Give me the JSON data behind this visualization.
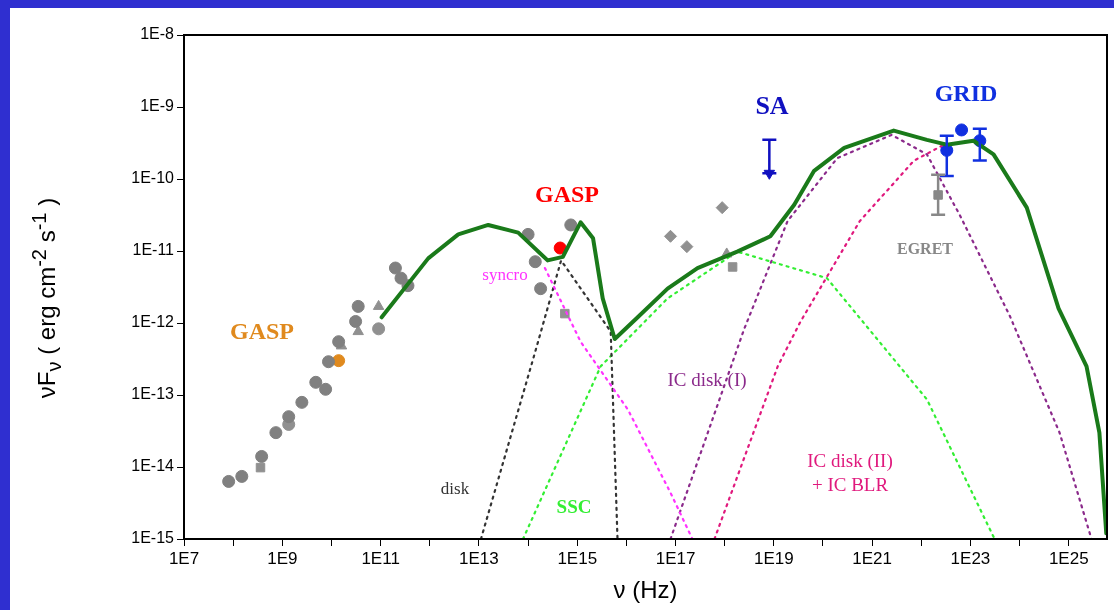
{
  "chart_data": {
    "type": "line",
    "xlabel": "ν (Hz)",
    "ylabel": "νF$_{ν}$ ( erg cm$^{-2}$ s$^{-1}$ )",
    "log": "xy",
    "xlim": [
      10000000.0,
      6e+25
    ],
    "ylim": [
      1e-15,
      1e-08
    ],
    "xticks": [
      {
        "value": 10000000.0,
        "label": "1E7"
      },
      {
        "value": 100000000.0,
        "label": null
      },
      {
        "value": 1000000000.0,
        "label": "1E9"
      },
      {
        "value": 10000000000.0,
        "label": null
      },
      {
        "value": 100000000000.0,
        "label": "1E11"
      },
      {
        "value": 1000000000000.0,
        "label": null
      },
      {
        "value": 10000000000000.0,
        "label": "1E13"
      },
      {
        "value": 100000000000000.0,
        "label": null
      },
      {
        "value": 1000000000000000.0,
        "label": "1E15"
      },
      {
        "value": 1e+16,
        "label": null
      },
      {
        "value": 1e+17,
        "label": "1E17"
      },
      {
        "value": 1e+18,
        "label": null
      },
      {
        "value": 1e+19,
        "label": "1E19"
      },
      {
        "value": 1e+20,
        "label": null
      },
      {
        "value": 1e+21,
        "label": "1E21"
      },
      {
        "value": 1e+22,
        "label": null
      },
      {
        "value": 1e+23,
        "label": "1E23"
      },
      {
        "value": 1e+24,
        "label": null
      },
      {
        "value": 1e+25,
        "label": "1E25"
      }
    ],
    "yticks": [
      {
        "value": 1e-15,
        "label": "1E-15"
      },
      {
        "value": 1e-14,
        "label": "1E-14"
      },
      {
        "value": 1e-13,
        "label": "1E-13"
      },
      {
        "value": 1e-12,
        "label": "1E-12"
      },
      {
        "value": 1e-11,
        "label": "1E-11"
      },
      {
        "value": 1e-10,
        "label": "1E-10"
      },
      {
        "value": 1e-09,
        "label": "1E-9"
      },
      {
        "value": 1e-08,
        "label": "1E-8"
      }
    ],
    "grid": false,
    "legend": false,
    "series": [
      {
        "color": "#1a7a1a",
        "line_style": "solid",
        "marker": "none",
        "x": [
          105000000000.0,
          930000000000.0,
          3800000000000.0,
          15500000000000.0,
          63000000000000.0,
          250000000000000.0,
          510000000000000.0,
          1170000000000000.0,
          2100000000000000.0,
          3300000000000000.0,
          5800000000000000.0,
          1.7e+16,
          6.9e+16,
          2.8e+17,
          1.8e+18,
          8.5e+18,
          2.6e+19,
          6.6e+19,
          2.7e+20,
          2.75e+21,
          1.3e+22,
          3.3e+22,
          1.15e+23,
          2.95e+23,
          1.4e+24,
          6.2e+24,
          2.3e+25,
          4.2e+25,
          5.8e+25
        ],
        "values": [
          1.2e-12,
          7.9e-12,
          1.7e-11,
          2.3e-11,
          1.8e-11,
          7.4e-12,
          8.3e-12,
          2.5e-11,
          1.5e-11,
          2.2e-12,
          6e-13,
          1.2e-12,
          3e-12,
          5.8e-12,
          9.8e-12,
          1.6e-11,
          4.4e-11,
          1.3e-10,
          2.7e-10,
          4.7e-10,
          3.5e-10,
          3e-10,
          3.4e-10,
          2.2e-10,
          4e-11,
          1.6e-12,
          2.5e-13,
          3e-14,
          1.2e-15
        ]
      },
      {
        "type": "line",
        "name": "syncro",
        "color": "#ff33ff",
        "line_style": "dotted",
        "marker": "none",
        "x": [
          220000000000000.0,
          1170000000000000.0,
          1.07e+16,
          7.9e+16,
          2.2e+17
        ],
        "values": [
          5.8e-12,
          5.5e-13,
          6.3e-14,
          4.4e-15,
          1e-15
        ]
      },
      {
        "type": "line",
        "name": "disk",
        "color": "#333333",
        "line_style": "dotted",
        "marker": "none",
        "x": [
          11000000000000.0,
          140000000000000.0,
          470000000000000.0,
          4800000000000000.0,
          6600000000000000.0
        ],
        "values": [
          1e-15,
          4e-13,
          7.4e-12,
          7.6e-13,
          1e-15
        ]
      },
      {
        "type": "line",
        "name": "SSC",
        "color": "#33ee33",
        "line_style": "dotted",
        "marker": "none",
        "x": [
          79000000000000.0,
          3000000000000000.0,
          6.9e+16,
          1.8e+18,
          1.2e+20,
          1.3e+22,
          3.1e+23
        ],
        "values": [
          1e-15,
          2.5e-13,
          2.2e-12,
          9.8e-12,
          4.2e-12,
          8.7e-14,
          1e-15
        ]
      },
      {
        "type": "line",
        "name": "IC disk (I)",
        "color": "#8b2a8b",
        "line_style": "dotted",
        "marker": "none",
        "x": [
          7.9e+16,
          2.5e+18,
          1.9e+19,
          1.95e+20,
          2.5e+21,
          1.3e+22,
          6e+22,
          6.3e+23,
          6.5e+24,
          2.9e+25
        ],
        "values": [
          1e-15,
          8.3e-13,
          2.6e-11,
          1.95e-10,
          4.1e-10,
          2.2e-10,
          3.2e-11,
          1.26e-12,
          3e-14,
          1e-15
        ]
      },
      {
        "type": "line",
        "name": "IC disk (II)\n+ IC BLR",
        "color": "#e0197d",
        "line_style": "dotted",
        "marker": "none",
        "x": [
          6.2e+17,
          1.2e+19,
          3.5e+19,
          5.6e+20,
          7.1e+21,
          2.9e+22
        ],
        "values": [
          1e-15,
          2.5e-13,
          1.05e-12,
          2.6e-11,
          1.8e-10,
          3e-10
        ]
      },
      {
        "type": "scatter",
        "color": "#808080",
        "marker": "circle",
        "x": [
          81000000.0,
          150000000.0,
          380000000.0,
          740000000.0,
          1350000000.0,
          2500000000.0,
          4800000000.0,
          7600000000.0,
          8700000000.0,
          14000000000.0,
          31000000000.0,
          35000000000.0,
          260000000000.0,
          200000000000.0,
          360000000000.0,
          100000000000000.0,
          140000000000000.0,
          180000000000000.0,
          650000000000000.0,
          740000000000000.0
        ],
        "values": [
          6.3e-15,
          7.4e-15,
          1.4e-14,
          3e-14,
          5e-14,
          7.9e-14,
          1.5e-13,
          1.2e-13,
          2.9e-13,
          5.5e-13,
          1.05e-12,
          1.7e-12,
          4.2e-12,
          5.8e-12,
          3.3e-12,
          1.7e-11,
          7.1e-12,
          3e-12,
          null,
          2.3e-11
        ]
      },
      {
        "type": "scatter",
        "color": "#909090",
        "marker": "square",
        "x": [
          360000000.0,
          560000000000000.0,
          1.45e+18
        ],
        "values": [
          9.8e-15,
          1.35e-12,
          6e-12
        ]
      },
      {
        "type": "scatter",
        "color": "#909090",
        "marker": "circle",
        "x": [
          1350000000.0,
          91000000000.0
        ],
        "values": [
          3.9e-14,
          8.3e-13
        ]
      },
      {
        "type": "scatter",
        "color": "#909090",
        "marker": "triangle",
        "x": [
          91000000000.0,
          35000000000.0,
          16000000000.0,
          1.1e+18
        ],
        "values": [
          1.7e-12,
          7.6e-13,
          4.8e-13,
          9.1e-12
        ]
      },
      {
        "type": "scatter",
        "color": "#909090",
        "marker": "diamond",
        "x": [
          7.9e+16,
          1.7e+17,
          8.9e+17
        ],
        "values": [
          1.6e-11,
          1.15e-11,
          4e-11
        ]
      },
      {
        "type": "scatter",
        "name": "GASP",
        "color": "#e08a1e",
        "marker": "circle",
        "x": [
          14000000000.0
        ],
        "values": [
          3e-13
        ]
      },
      {
        "type": "scatter",
        "name": "GASP",
        "color": "#ff0000",
        "marker": "circle",
        "x": [
          450000000000000.0
        ],
        "values": [
          1.1e-11
        ]
      },
      {
        "type": "scatter",
        "name": "SA",
        "color": "#1010c0",
        "marker": "triangle",
        "x": [
          8.1e+18
        ],
        "values": [
          1.2e-10
        ],
        "errors": [
          [
            1.2e-10,
            3.5e-10
          ]
        ]
      },
      {
        "type": "scatter",
        "name": "GRID",
        "color": "#1030e0",
        "marker": "circle",
        "x": [
          3.3e+22,
          6.6e+22,
          1.55e+23
        ],
        "values": [
          2.5e-10,
          4.8e-10,
          3.4e-10
        ],
        "errors": [
          [
            1.1e-10,
            4e-10
          ],
          null,
          [
            1.8e-10,
            5e-10
          ]
        ]
      },
      {
        "type": "scatter",
        "name": "EGRET",
        "color": "#888888",
        "marker": "square",
        "x": [
          2.2e+22
        ],
        "values": [
          6e-11
        ],
        "errors": [
          [
            3.2e-11,
            1.15e-10
          ]
        ]
      }
    ]
  }
}
